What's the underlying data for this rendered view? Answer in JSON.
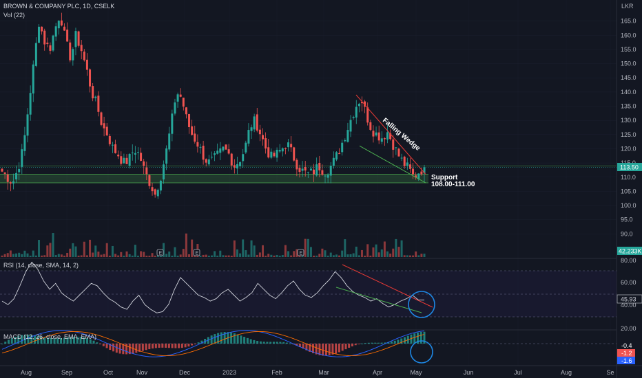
{
  "header": {
    "title": "BROWN & COMPANY PLC, 1D, CSELK",
    "vol_label": "Vol (22)",
    "currency": "LKR"
  },
  "rsi_label": "RSI (14, close, SMA, 14, 2)",
  "macd_label": "MACD (12, 26, close, EMA, EMA)",
  "annotations": {
    "pattern": "Falling Wedge",
    "support_title": "Support",
    "support_range": "108.00-111.00"
  },
  "badges": {
    "price": "113.50",
    "volume": "42.233K",
    "rsi": "45.93",
    "macd1": "-0.4",
    "macd2": "-1.2",
    "macd3": "-1.6"
  },
  "colors": {
    "up": "#26a69a",
    "down": "#ef5350",
    "support": "#4caf50",
    "wedge": "#e53935",
    "circle": "#1e88e5",
    "background": "#131722"
  },
  "chart_data": [
    {
      "type": "candlestick",
      "title": "BROWN & COMPANY PLC, 1D, CSELK",
      "ylim": [
        85,
        170
      ],
      "y_ticks": [
        90.0,
        95.0,
        100.0,
        105.0,
        110.0,
        115.0,
        120.0,
        125.0,
        130.0,
        135.0,
        140.0,
        145.0,
        150.0,
        155.0,
        160.0,
        165.0
      ],
      "x_ticks": [
        "Aug",
        "Sep",
        "Oct",
        "Nov",
        "Dec",
        "2023",
        "Feb",
        "Mar",
        "Apr",
        "May",
        "Jun",
        "Jul",
        "Aug",
        "Se"
      ],
      "close_path": [
        112,
        110,
        108,
        113,
        120,
        135,
        150,
        165,
        158,
        155,
        162,
        168,
        158,
        152,
        160,
        155,
        148,
        140,
        135,
        128,
        125,
        120,
        118,
        115,
        116,
        120,
        118,
        112,
        108,
        104,
        110,
        118,
        128,
        140,
        138,
        130,
        125,
        122,
        118,
        115,
        116,
        118,
        120,
        118,
        114,
        116,
        120,
        128,
        130,
        125,
        120,
        117,
        118,
        120,
        122,
        118,
        114,
        112,
        111,
        112,
        114,
        112,
        113,
        116,
        120,
        125,
        130,
        135,
        138,
        132,
        127,
        125,
        124,
        126,
        122,
        118,
        115,
        113,
        110,
        112,
        113.5
      ],
      "support_zone": [
        108,
        111
      ],
      "pattern": "Falling Wedge",
      "last_price": 113.5
    },
    {
      "type": "bar",
      "name": "Vol (22)",
      "last": "42.233K"
    },
    {
      "type": "line",
      "name": "RSI (14, close, SMA, 14, 2)",
      "ylim": [
        20,
        80
      ],
      "y_ticks": [
        20.0,
        40.0,
        60.0,
        80.0
      ],
      "last": 45.93
    },
    {
      "type": "bar",
      "name": "MACD (12, 26, close, EMA, EMA)",
      "last_values": [
        -0.4,
        -1.2,
        -1.6
      ]
    }
  ]
}
